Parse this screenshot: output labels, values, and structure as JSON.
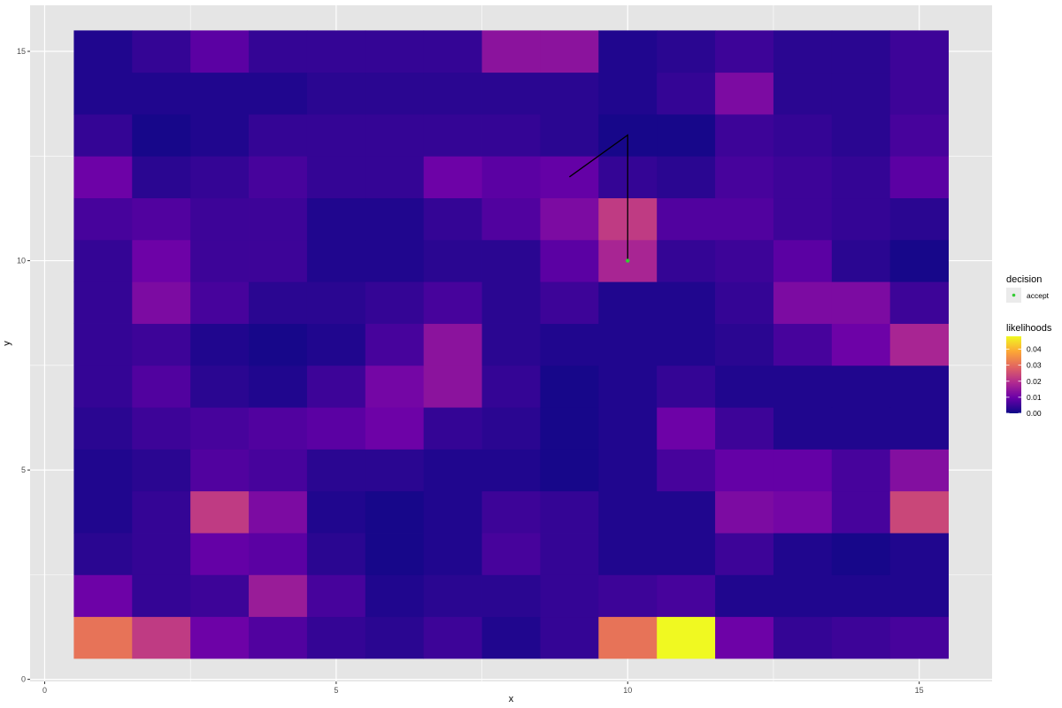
{
  "chart_data": {
    "type": "heatmap",
    "xlabel": "x",
    "ylabel": "y",
    "xlim": [
      -0.25,
      16.25
    ],
    "ylim": [
      -0.05,
      16.1
    ],
    "x_ticks": [
      0,
      5,
      10,
      15
    ],
    "y_ticks": [
      0,
      5,
      10,
      15
    ],
    "grid": true,
    "x_cells": [
      1,
      2,
      3,
      4,
      5,
      6,
      7,
      8,
      9,
      10,
      11,
      12,
      13,
      14,
      15
    ],
    "y_cells": [
      1,
      2,
      3,
      4,
      5,
      6,
      7,
      8,
      9,
      10,
      11,
      12,
      13,
      14,
      15
    ],
    "z": [
      [
        0.031,
        0.022,
        0.01,
        0.007,
        0.004,
        0.003,
        0.005,
        0.002,
        0.004,
        0.031,
        0.048,
        0.01,
        0.004,
        0.005,
        0.006
      ],
      [
        0.01,
        0.004,
        0.005,
        0.016,
        0.006,
        0.002,
        0.003,
        0.003,
        0.004,
        0.005,
        0.006,
        0.002,
        0.002,
        0.002,
        0.002
      ],
      [
        0.003,
        0.004,
        0.009,
        0.008,
        0.003,
        0.001,
        0.002,
        0.006,
        0.004,
        0.002,
        0.002,
        0.005,
        0.002,
        0.001,
        0.002
      ],
      [
        0.002,
        0.004,
        0.022,
        0.012,
        0.002,
        0.001,
        0.002,
        0.005,
        0.004,
        0.002,
        0.002,
        0.012,
        0.011,
        0.006,
        0.024
      ],
      [
        0.002,
        0.003,
        0.007,
        0.006,
        0.003,
        0.003,
        0.002,
        0.002,
        0.001,
        0.002,
        0.006,
        0.009,
        0.009,
        0.006,
        0.013
      ],
      [
        0.003,
        0.005,
        0.006,
        0.007,
        0.008,
        0.01,
        0.004,
        0.003,
        0.001,
        0.002,
        0.01,
        0.005,
        0.002,
        0.002,
        0.002
      ],
      [
        0.004,
        0.007,
        0.003,
        0.002,
        0.005,
        0.011,
        0.014,
        0.004,
        0.001,
        0.002,
        0.004,
        0.002,
        0.002,
        0.002,
        0.002
      ],
      [
        0.004,
        0.005,
        0.002,
        0.001,
        0.002,
        0.006,
        0.014,
        0.003,
        0.002,
        0.002,
        0.002,
        0.003,
        0.006,
        0.01,
        0.018
      ],
      [
        0.004,
        0.012,
        0.006,
        0.003,
        0.003,
        0.004,
        0.006,
        0.003,
        0.005,
        0.002,
        0.002,
        0.004,
        0.012,
        0.012,
        0.005
      ],
      [
        0.004,
        0.01,
        0.005,
        0.005,
        0.002,
        0.002,
        0.003,
        0.003,
        0.008,
        0.018,
        0.004,
        0.005,
        0.008,
        0.003,
        0.001
      ],
      [
        0.006,
        0.007,
        0.005,
        0.005,
        0.002,
        0.002,
        0.004,
        0.007,
        0.012,
        0.022,
        0.007,
        0.007,
        0.005,
        0.004,
        0.003
      ],
      [
        0.01,
        0.003,
        0.004,
        0.006,
        0.004,
        0.004,
        0.01,
        0.008,
        0.009,
        0.004,
        0.003,
        0.006,
        0.005,
        0.004,
        0.008
      ],
      [
        0.004,
        0.001,
        0.002,
        0.004,
        0.004,
        0.004,
        0.004,
        0.004,
        0.003,
        0.001,
        0.001,
        0.005,
        0.004,
        0.003,
        0.006
      ],
      [
        0.002,
        0.002,
        0.002,
        0.002,
        0.003,
        0.003,
        0.003,
        0.003,
        0.003,
        0.002,
        0.004,
        0.012,
        0.003,
        0.003,
        0.005
      ],
      [
        0.002,
        0.004,
        0.008,
        0.004,
        0.004,
        0.004,
        0.004,
        0.014,
        0.014,
        0.002,
        0.003,
        0.005,
        0.003,
        0.003,
        0.005
      ]
    ],
    "fill_scale": {
      "title": "likelihoods",
      "min": 0,
      "max": 0.048,
      "ticks": [
        0.0,
        0.01,
        0.02,
        0.03,
        0.04
      ],
      "tick_labels": [
        "0.00",
        "0.01",
        "0.02",
        "0.03",
        "0.04"
      ],
      "palette": [
        "#0d0887",
        "#6a00a8",
        "#b12a90",
        "#e16462",
        "#fca636",
        "#f0f921"
      ]
    },
    "path": {
      "x": [
        10,
        10,
        9
      ],
      "y": [
        10,
        13,
        12
      ],
      "color": "#000000"
    },
    "points": {
      "legend_title": "decision",
      "series": [
        {
          "name": "accept",
          "x": [
            10
          ],
          "y": [
            10
          ],
          "color": "#33cc33"
        }
      ]
    },
    "colors": {
      "panel_bg": "#e5e5e5",
      "grid_major": "#ffffff"
    },
    "legend_position": "right"
  }
}
